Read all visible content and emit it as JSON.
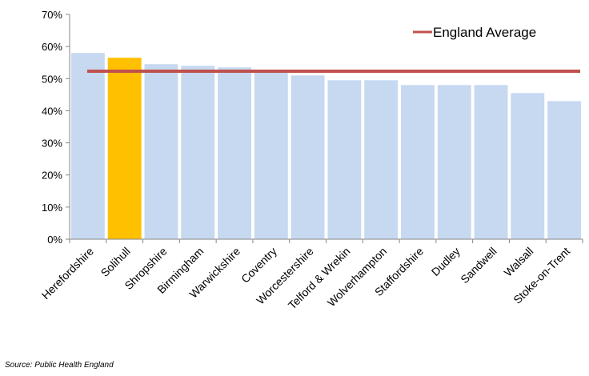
{
  "chart_data": {
    "type": "bar",
    "categories": [
      "Herefordshire",
      "Solihull",
      "Shropshire",
      "Birmingham",
      "Warwickshire",
      "Coventry",
      "Worcestershire",
      "Telford & Wrekin",
      "Wolverhampton",
      "Staffordshire",
      "Dudley",
      "Sandwell",
      "Walsall",
      "Stoke-on-Trent"
    ],
    "values": [
      58,
      56.5,
      54.5,
      54,
      53.5,
      52.5,
      51,
      49.5,
      49.5,
      48,
      48,
      48,
      45.5,
      43
    ],
    "highlight_category": "Solihull",
    "reference_line": {
      "name": "England Average",
      "value": 52.3
    },
    "ylim": [
      0,
      70
    ],
    "yticks": [
      0,
      10,
      20,
      30,
      40,
      50,
      60,
      70
    ],
    "ytick_labels": [
      "0%",
      "10%",
      "20%",
      "30%",
      "40%",
      "50%",
      "60%",
      "70%"
    ],
    "grid": false,
    "legend_position": "top-right",
    "colors": {
      "bar": "#c6d9f1",
      "highlight": "#ffc000",
      "reference_line": "#c0504d",
      "axis": "#868686"
    }
  },
  "source_text": "Source: Public Health England"
}
